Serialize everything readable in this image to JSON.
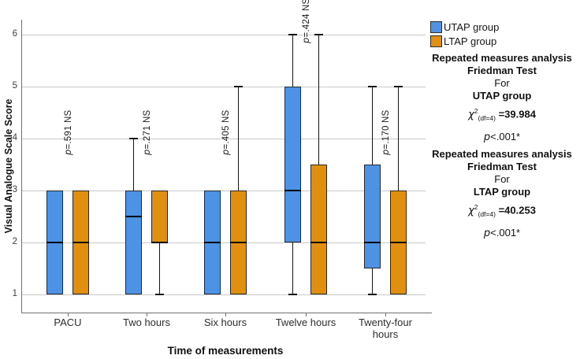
{
  "colors": {
    "utap": "#4d92e5",
    "ltap": "#e0900e",
    "box_border": "#26282e",
    "grid": "#c9c9c9",
    "axis": "#707070"
  },
  "chart_data": {
    "type": "boxplot",
    "xlabel": "Time of measurements",
    "ylabel": "Visual Analogue Scale Score",
    "yticks": [
      1,
      2,
      3,
      4,
      5,
      6
    ],
    "ylim": [
      1,
      6
    ],
    "grid": true,
    "categories": [
      "PACU",
      "Two hours",
      "Six hours",
      "Twelve hours",
      "Twenty-four hours"
    ],
    "series": [
      {
        "name": "UTAP group",
        "color_key": "utap",
        "boxes": [
          {
            "lo": 1,
            "q1": 1,
            "med": 2,
            "q3": 3,
            "hi": 3
          },
          {
            "lo": 1,
            "q1": 1,
            "med": 2.5,
            "q3": 3,
            "hi": 4
          },
          {
            "lo": 1,
            "q1": 1,
            "med": 2,
            "q3": 3,
            "hi": 3
          },
          {
            "lo": 1,
            "q1": 2,
            "med": 3,
            "q3": 5,
            "hi": 6
          },
          {
            "lo": 1,
            "q1": 1.5,
            "med": 2,
            "q3": 3.5,
            "hi": 5
          }
        ]
      },
      {
        "name": "LTAP group",
        "color_key": "ltap",
        "boxes": [
          {
            "lo": 1,
            "q1": 1,
            "med": 2,
            "q3": 3,
            "hi": 3
          },
          {
            "lo": 1,
            "q1": 2,
            "med": 2,
            "q3": 3,
            "hi": 3
          },
          {
            "lo": 1,
            "q1": 1,
            "med": 2,
            "q3": 3,
            "hi": 5
          },
          {
            "lo": 1,
            "q1": 1,
            "med": 2,
            "q3": 3.5,
            "hi": 6
          },
          {
            "lo": 1,
            "q1": 1,
            "med": 2,
            "q3": 3,
            "hi": 5
          }
        ]
      }
    ],
    "annotations": [
      {
        "text": "p=.591 NS",
        "x_index": 0,
        "y_value": 3.68
      },
      {
        "text": "p=.271 NS",
        "x_index": 1,
        "y_value": 3.68
      },
      {
        "text": "p=.405 NS",
        "x_index": 2,
        "y_value": 3.68
      },
      {
        "text": "p=.424 NS",
        "x_index": 3,
        "y_value": 5.83
      },
      {
        "text": "p=.170 NS",
        "x_index": 4,
        "y_value": 3.68
      }
    ],
    "legend_position": "top-right-outside"
  },
  "legend": {
    "items": [
      {
        "label": "UTAP group",
        "color_key": "utap"
      },
      {
        "label": "LTAP group",
        "color_key": "ltap"
      }
    ]
  },
  "stats_blocks": [
    {
      "heading1": "Repeated measures analysis",
      "heading2": "Friedman Test",
      "for_word": "For",
      "group": "UTAP group",
      "chi_base": "χ",
      "chi_sup": "2",
      "chi_sub": "(df=4)",
      "chi_eq": " =39.984",
      "p_italic": "p",
      "p_rest": "<.001*"
    },
    {
      "heading1": "Repeated measures analysis",
      "heading2": "Friedman Test",
      "for_word": "For",
      "group": "LTAP group",
      "chi_base": "χ",
      "chi_sup": "2",
      "chi_sub": "(df=4)",
      "chi_eq": " =40.253",
      "p_italic": "p",
      "p_rest": "<.001*"
    }
  ]
}
